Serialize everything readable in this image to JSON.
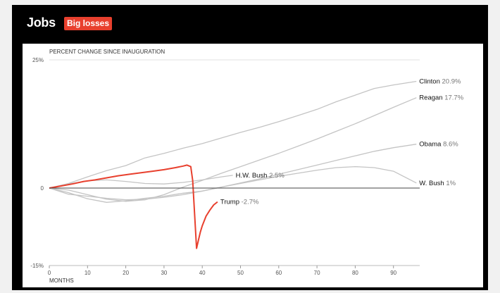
{
  "header": {
    "title": "Jobs",
    "badge": "Big losses"
  },
  "chart_data": {
    "type": "line",
    "title": "PERCENT CHANGE SINCE INAUGURATION",
    "xlabel": "MONTHS",
    "ylabel": "",
    "xlim": [
      0,
      97
    ],
    "ylim": [
      -15,
      25
    ],
    "x_ticks": [
      "0",
      "10",
      "20",
      "30",
      "40",
      "50",
      "60",
      "70",
      "80",
      "90"
    ],
    "y_ticks": [
      "25%",
      "0",
      "-15%"
    ],
    "grid": false,
    "colors": {
      "highlight": "#e8402e",
      "other": "#c4c4c4",
      "zero_line": "#444444"
    },
    "series": [
      {
        "name": "Clinton",
        "value_label": "20.9%",
        "highlight": false,
        "x": [
          0,
          5,
          10,
          15,
          20,
          25,
          30,
          35,
          40,
          45,
          50,
          55,
          60,
          65,
          70,
          75,
          80,
          85,
          90,
          96
        ],
        "y": [
          0,
          0.9,
          2.2,
          3.4,
          4.4,
          5.9,
          6.8,
          7.8,
          8.7,
          9.8,
          10.9,
          11.9,
          13.0,
          14.2,
          15.4,
          16.9,
          18.2,
          19.5,
          20.2,
          20.9
        ]
      },
      {
        "name": "Reagan",
        "value_label": "17.7%",
        "highlight": false,
        "x": [
          0,
          5,
          10,
          15,
          20,
          25,
          30,
          35,
          40,
          45,
          50,
          55,
          60,
          65,
          70,
          75,
          80,
          85,
          90,
          96
        ],
        "y": [
          0,
          -0.4,
          -1.3,
          -2.2,
          -2.6,
          -2.3,
          -1.3,
          0.2,
          1.5,
          2.9,
          4.2,
          5.5,
          6.8,
          8.2,
          9.6,
          11.1,
          12.6,
          14.2,
          15.8,
          17.7
        ]
      },
      {
        "name": "Obama",
        "value_label": "8.6%",
        "highlight": false,
        "x": [
          0,
          5,
          10,
          15,
          20,
          25,
          30,
          35,
          40,
          45,
          50,
          55,
          60,
          65,
          70,
          75,
          80,
          85,
          90,
          96
        ],
        "y": [
          0,
          -0.9,
          -2.1,
          -2.8,
          -2.5,
          -2.0,
          -1.6,
          -1.0,
          -0.6,
          0.2,
          1.0,
          1.8,
          2.7,
          3.6,
          4.5,
          5.4,
          6.3,
          7.2,
          7.9,
          8.6
        ]
      },
      {
        "name": "H.W. Bush",
        "value_label": "2.5%",
        "highlight": false,
        "x": [
          0,
          5,
          10,
          15,
          20,
          25,
          30,
          35,
          40,
          45,
          48
        ],
        "y": [
          0,
          0.8,
          1.4,
          1.6,
          1.3,
          0.9,
          0.8,
          1.1,
          1.6,
          2.2,
          2.5
        ]
      },
      {
        "name": "W. Bush",
        "value_label": "1%",
        "highlight": false,
        "x": [
          0,
          5,
          10,
          15,
          20,
          25,
          30,
          35,
          40,
          45,
          50,
          55,
          60,
          65,
          70,
          75,
          80,
          85,
          90,
          96
        ],
        "y": [
          0,
          -1.2,
          -1.6,
          -2.0,
          -2.3,
          -2.2,
          -1.8,
          -1.3,
          -0.6,
          0.2,
          0.9,
          1.6,
          2.3,
          2.9,
          3.5,
          4.0,
          4.2,
          4.0,
          3.3,
          1.0
        ]
      },
      {
        "name": "Trump",
        "value_label": "-2.7%",
        "highlight": true,
        "x": [
          0,
          3,
          6,
          9,
          12,
          15,
          18,
          21,
          24,
          27,
          30,
          33,
          35,
          36,
          37,
          37.5,
          38,
          38.5,
          39,
          39.5,
          40,
          41,
          42,
          43,
          44
        ],
        "y": [
          0,
          0.4,
          0.8,
          1.3,
          1.6,
          2.0,
          2.4,
          2.7,
          3.0,
          3.3,
          3.6,
          4.0,
          4.3,
          4.5,
          4.2,
          1.5,
          -5.0,
          -11.8,
          -10.2,
          -8.6,
          -7.4,
          -5.5,
          -4.3,
          -3.3,
          -2.7
        ]
      }
    ]
  }
}
